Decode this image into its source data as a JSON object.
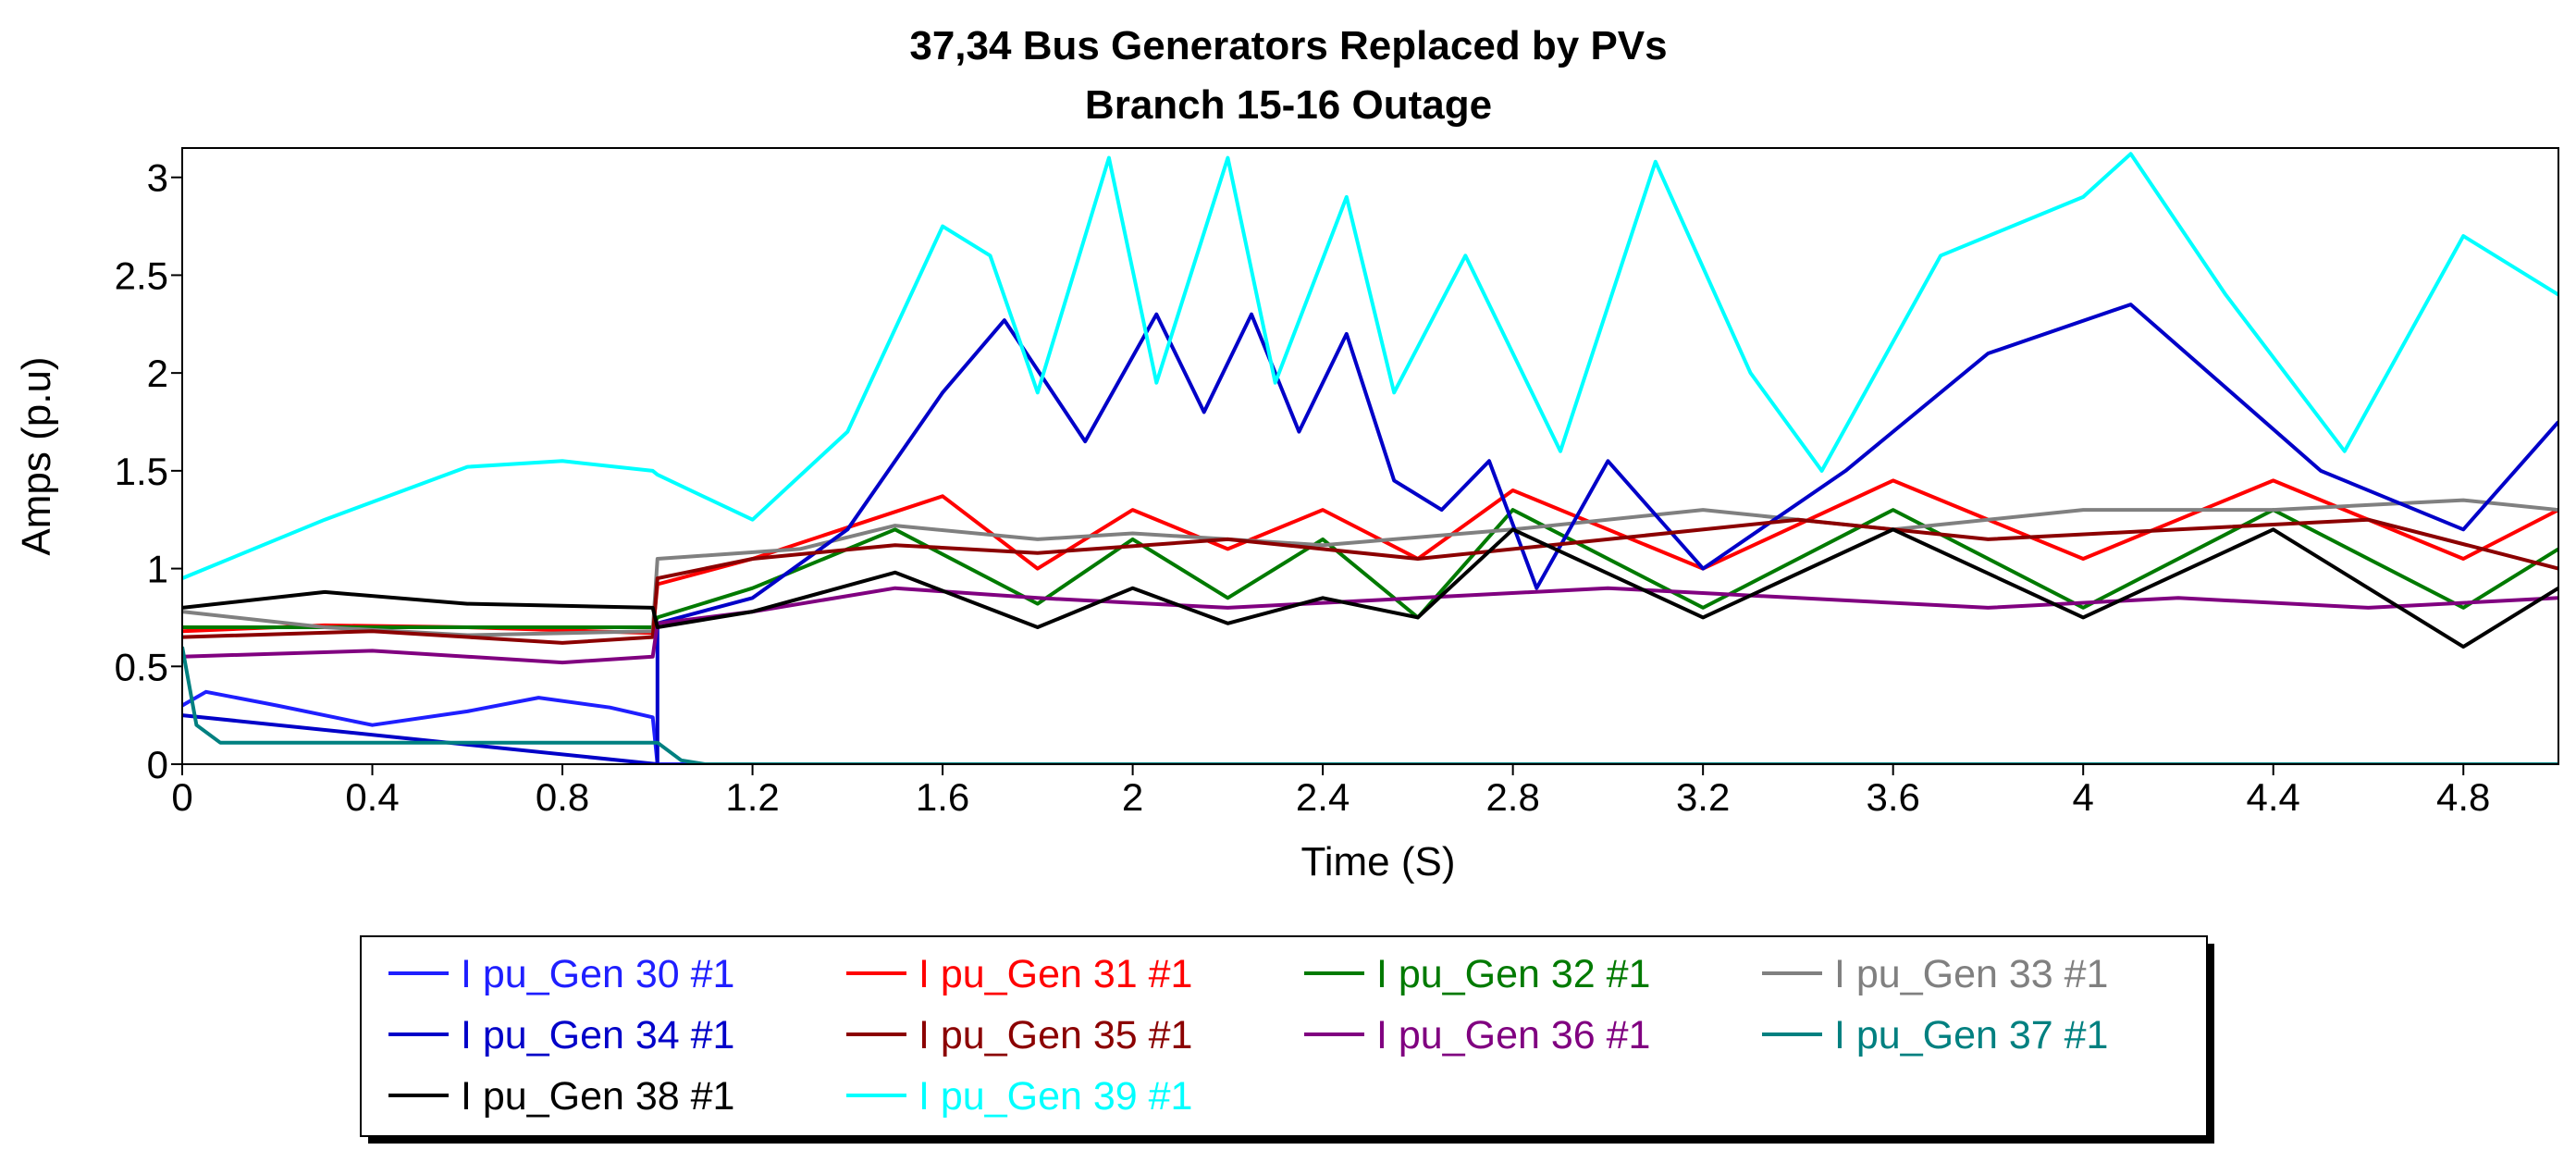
{
  "chart_data": {
    "type": "line",
    "title": [
      "37,34  Bus Generators Replaced by PVs",
      "Branch 15-16 Outage"
    ],
    "xlabel": "Time (S)",
    "ylabel": "Amps (p.u)",
    "xlim": [
      0,
      5
    ],
    "ylim": [
      0,
      3.15
    ],
    "xticks": [
      0,
      0.4,
      0.8,
      1.2,
      1.6,
      2,
      2.4,
      2.8,
      3.2,
      3.6,
      4,
      4.4,
      4.8
    ],
    "xtick_labels": [
      "0",
      "0.4",
      "0.8",
      "1.2",
      "1.6",
      "2",
      "2.4",
      "2.8",
      "3.2",
      "3.6",
      "4",
      "4.4",
      "4.8"
    ],
    "yticks": [
      0,
      0.5,
      1,
      1.5,
      2,
      2.5,
      3
    ],
    "ytick_labels": [
      "0",
      "0.5",
      "1",
      "1.5",
      "2",
      "2.5",
      "3"
    ],
    "grid": false,
    "legend_position": "bottom",
    "series": [
      {
        "name": "I pu_Gen 30 #1",
        "color": "#1f1fff",
        "points": [
          [
            0,
            0.3
          ],
          [
            0.05,
            0.37
          ],
          [
            0.2,
            0.3
          ],
          [
            0.4,
            0.2
          ],
          [
            0.6,
            0.27
          ],
          [
            0.75,
            0.34
          ],
          [
            0.9,
            0.29
          ],
          [
            0.99,
            0.24
          ],
          [
            1.0,
            0.0
          ],
          [
            5.0,
            0.0
          ]
        ]
      },
      {
        "name": "I pu_Gen 31 #1",
        "color": "#ff0000",
        "points": [
          [
            0,
            0.68
          ],
          [
            0.3,
            0.71
          ],
          [
            0.6,
            0.7
          ],
          [
            0.99,
            0.67
          ],
          [
            1.0,
            0.92
          ],
          [
            1.2,
            1.05
          ],
          [
            1.45,
            1.25
          ],
          [
            1.6,
            1.37
          ],
          [
            1.8,
            1.0
          ],
          [
            2.0,
            1.3
          ],
          [
            2.2,
            1.1
          ],
          [
            2.4,
            1.3
          ],
          [
            2.6,
            1.05
          ],
          [
            2.8,
            1.4
          ],
          [
            3.2,
            1.0
          ],
          [
            3.6,
            1.45
          ],
          [
            4.0,
            1.05
          ],
          [
            4.4,
            1.45
          ],
          [
            4.8,
            1.05
          ],
          [
            5.0,
            1.3
          ]
        ]
      },
      {
        "name": "I pu_Gen 32 #1",
        "color": "#007a00",
        "points": [
          [
            0,
            0.7
          ],
          [
            0.4,
            0.7
          ],
          [
            0.99,
            0.7
          ],
          [
            1.0,
            0.75
          ],
          [
            1.2,
            0.9
          ],
          [
            1.5,
            1.2
          ],
          [
            1.8,
            0.82
          ],
          [
            2.0,
            1.15
          ],
          [
            2.2,
            0.85
          ],
          [
            2.4,
            1.15
          ],
          [
            2.6,
            0.75
          ],
          [
            2.8,
            1.3
          ],
          [
            3.2,
            0.8
          ],
          [
            3.6,
            1.3
          ],
          [
            4.0,
            0.8
          ],
          [
            4.4,
            1.3
          ],
          [
            4.8,
            0.8
          ],
          [
            5.0,
            1.1
          ]
        ]
      },
      {
        "name": "I pu_Gen 33 #1",
        "color": "#808080",
        "points": [
          [
            0,
            0.78
          ],
          [
            0.3,
            0.7
          ],
          [
            0.6,
            0.66
          ],
          [
            0.99,
            0.68
          ],
          [
            1.0,
            1.05
          ],
          [
            1.3,
            1.1
          ],
          [
            1.5,
            1.22
          ],
          [
            1.8,
            1.15
          ],
          [
            2.0,
            1.18
          ],
          [
            2.4,
            1.12
          ],
          [
            2.8,
            1.2
          ],
          [
            3.2,
            1.3
          ],
          [
            3.6,
            1.2
          ],
          [
            4.0,
            1.3
          ],
          [
            4.4,
            1.3
          ],
          [
            4.8,
            1.35
          ],
          [
            5.0,
            1.3
          ]
        ]
      },
      {
        "name": "I pu_Gen 34 #1",
        "color": "#0000c8",
        "points": [
          [
            0,
            0.25
          ],
          [
            1.0,
            0.0
          ],
          [
            1.0,
            0.72
          ],
          [
            1.2,
            0.85
          ],
          [
            1.4,
            1.2
          ],
          [
            1.6,
            1.9
          ],
          [
            1.73,
            2.27
          ],
          [
            1.9,
            1.65
          ],
          [
            2.05,
            2.3
          ],
          [
            2.15,
            1.8
          ],
          [
            2.25,
            2.3
          ],
          [
            2.35,
            1.7
          ],
          [
            2.45,
            2.2
          ],
          [
            2.55,
            1.45
          ],
          [
            2.65,
            1.3
          ],
          [
            2.75,
            1.55
          ],
          [
            2.85,
            0.9
          ],
          [
            3.0,
            1.55
          ],
          [
            3.2,
            1.0
          ],
          [
            3.5,
            1.5
          ],
          [
            3.8,
            2.1
          ],
          [
            4.1,
            2.35
          ],
          [
            4.5,
            1.5
          ],
          [
            4.8,
            1.2
          ],
          [
            5.0,
            1.75
          ]
        ]
      },
      {
        "name": "I pu_Gen 35 #1",
        "color": "#8b0000",
        "points": [
          [
            0,
            0.65
          ],
          [
            0.4,
            0.68
          ],
          [
            0.8,
            0.62
          ],
          [
            0.99,
            0.65
          ],
          [
            1.0,
            0.95
          ],
          [
            1.2,
            1.05
          ],
          [
            1.5,
            1.12
          ],
          [
            1.8,
            1.08
          ],
          [
            2.2,
            1.15
          ],
          [
            2.6,
            1.05
          ],
          [
            3.0,
            1.15
          ],
          [
            3.4,
            1.25
          ],
          [
            3.8,
            1.15
          ],
          [
            4.2,
            1.2
          ],
          [
            4.6,
            1.25
          ],
          [
            5.0,
            1.0
          ]
        ]
      },
      {
        "name": "I pu_Gen 36 #1",
        "color": "#800080",
        "points": [
          [
            0,
            0.55
          ],
          [
            0.4,
            0.58
          ],
          [
            0.8,
            0.52
          ],
          [
            0.99,
            0.55
          ],
          [
            1.0,
            0.72
          ],
          [
            1.2,
            0.78
          ],
          [
            1.5,
            0.9
          ],
          [
            1.8,
            0.85
          ],
          [
            2.2,
            0.8
          ],
          [
            2.6,
            0.85
          ],
          [
            3.0,
            0.9
          ],
          [
            3.4,
            0.85
          ],
          [
            3.8,
            0.8
          ],
          [
            4.2,
            0.85
          ],
          [
            4.6,
            0.8
          ],
          [
            5.0,
            0.85
          ]
        ]
      },
      {
        "name": "I pu_Gen 37 #1",
        "color": "#008080",
        "points": [
          [
            0,
            0.6
          ],
          [
            0.03,
            0.2
          ],
          [
            0.08,
            0.11
          ],
          [
            0.99,
            0.11
          ],
          [
            1.0,
            0.11
          ],
          [
            1.05,
            0.02
          ],
          [
            1.1,
            0.0
          ],
          [
            5.0,
            0.0
          ]
        ]
      },
      {
        "name": "I pu_Gen 38 #1",
        "color": "#000000",
        "points": [
          [
            0,
            0.8
          ],
          [
            0.3,
            0.88
          ],
          [
            0.6,
            0.82
          ],
          [
            0.99,
            0.8
          ],
          [
            1.0,
            0.7
          ],
          [
            1.2,
            0.78
          ],
          [
            1.5,
            0.98
          ],
          [
            1.8,
            0.7
          ],
          [
            2.0,
            0.9
          ],
          [
            2.2,
            0.72
          ],
          [
            2.4,
            0.85
          ],
          [
            2.6,
            0.75
          ],
          [
            2.8,
            1.2
          ],
          [
            3.2,
            0.75
          ],
          [
            3.6,
            1.2
          ],
          [
            4.0,
            0.75
          ],
          [
            4.4,
            1.2
          ],
          [
            4.8,
            0.6
          ],
          [
            5.0,
            0.9
          ]
        ]
      },
      {
        "name": "I pu_Gen 39 #1",
        "color": "#00ffff",
        "points": [
          [
            0,
            0.95
          ],
          [
            0.3,
            1.25
          ],
          [
            0.6,
            1.52
          ],
          [
            0.8,
            1.55
          ],
          [
            0.99,
            1.5
          ],
          [
            1.0,
            1.48
          ],
          [
            1.2,
            1.25
          ],
          [
            1.4,
            1.7
          ],
          [
            1.6,
            2.75
          ],
          [
            1.7,
            2.6
          ],
          [
            1.8,
            1.9
          ],
          [
            1.95,
            3.1
          ],
          [
            2.05,
            1.95
          ],
          [
            2.2,
            3.1
          ],
          [
            2.3,
            1.95
          ],
          [
            2.45,
            2.9
          ],
          [
            2.55,
            1.9
          ],
          [
            2.7,
            2.6
          ],
          [
            2.9,
            1.6
          ],
          [
            3.1,
            3.08
          ],
          [
            3.3,
            2.0
          ],
          [
            3.45,
            1.5
          ],
          [
            3.7,
            2.6
          ],
          [
            4.0,
            2.9
          ],
          [
            4.1,
            3.12
          ],
          [
            4.3,
            2.4
          ],
          [
            4.55,
            1.6
          ],
          [
            4.8,
            2.7
          ],
          [
            5.0,
            2.4
          ]
        ]
      }
    ]
  }
}
